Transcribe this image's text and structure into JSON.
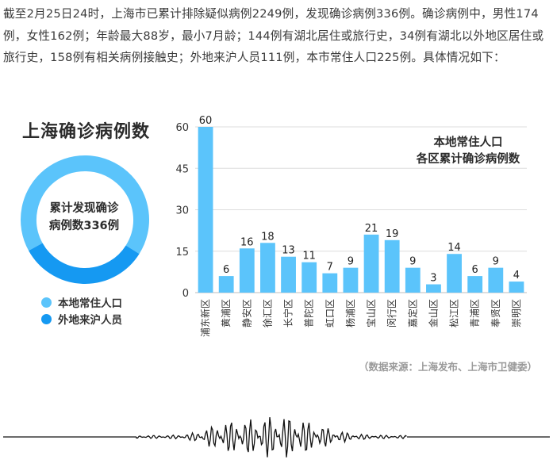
{
  "intro_text": "截至2月25日24时，上海市已累计排除疑似病例2249例，发现确诊病例336例。确诊病例中，男性174例，女性162例；年龄最大88岁，最小7月龄；144例有湖北居住或旅行史，34例有湖北以外地区居住或旅行史，158例有相关病例接触史；外地来沪人员111例，本市常住人口225例。具体情况如下：",
  "donut": {
    "title": "上海确诊病例数",
    "center_line1": "累计发现确诊",
    "center_line2": "病例数336例",
    "legend": [
      {
        "label": "本地常住人口",
        "value": 225,
        "color": "#5bc4fb"
      },
      {
        "label": "外地来沪人员",
        "value": 111,
        "color": "#1599f2"
      }
    ]
  },
  "chart_data": {
    "type": "bar",
    "title_line1": "本地常住人口",
    "title_line2": "各区累计确诊病例数",
    "categories": [
      "浦东新区",
      "黄浦区",
      "静安区",
      "徐汇区",
      "长宁区",
      "普陀区",
      "虹口区",
      "杨浦区",
      "宝山区",
      "闵行区",
      "嘉定区",
      "金山区",
      "松江区",
      "青浦区",
      "奉贤区",
      "崇明区"
    ],
    "values": [
      60,
      6,
      16,
      18,
      13,
      11,
      7,
      9,
      21,
      19,
      9,
      3,
      14,
      6,
      9,
      4
    ],
    "y_ticks": [
      0,
      15,
      30,
      45,
      60
    ],
    "ylim": [
      0,
      60
    ],
    "grid": true,
    "bar_color": "#5bc4fb"
  },
  "source_text": "（数据来源：上海发布、上海市卫健委）"
}
